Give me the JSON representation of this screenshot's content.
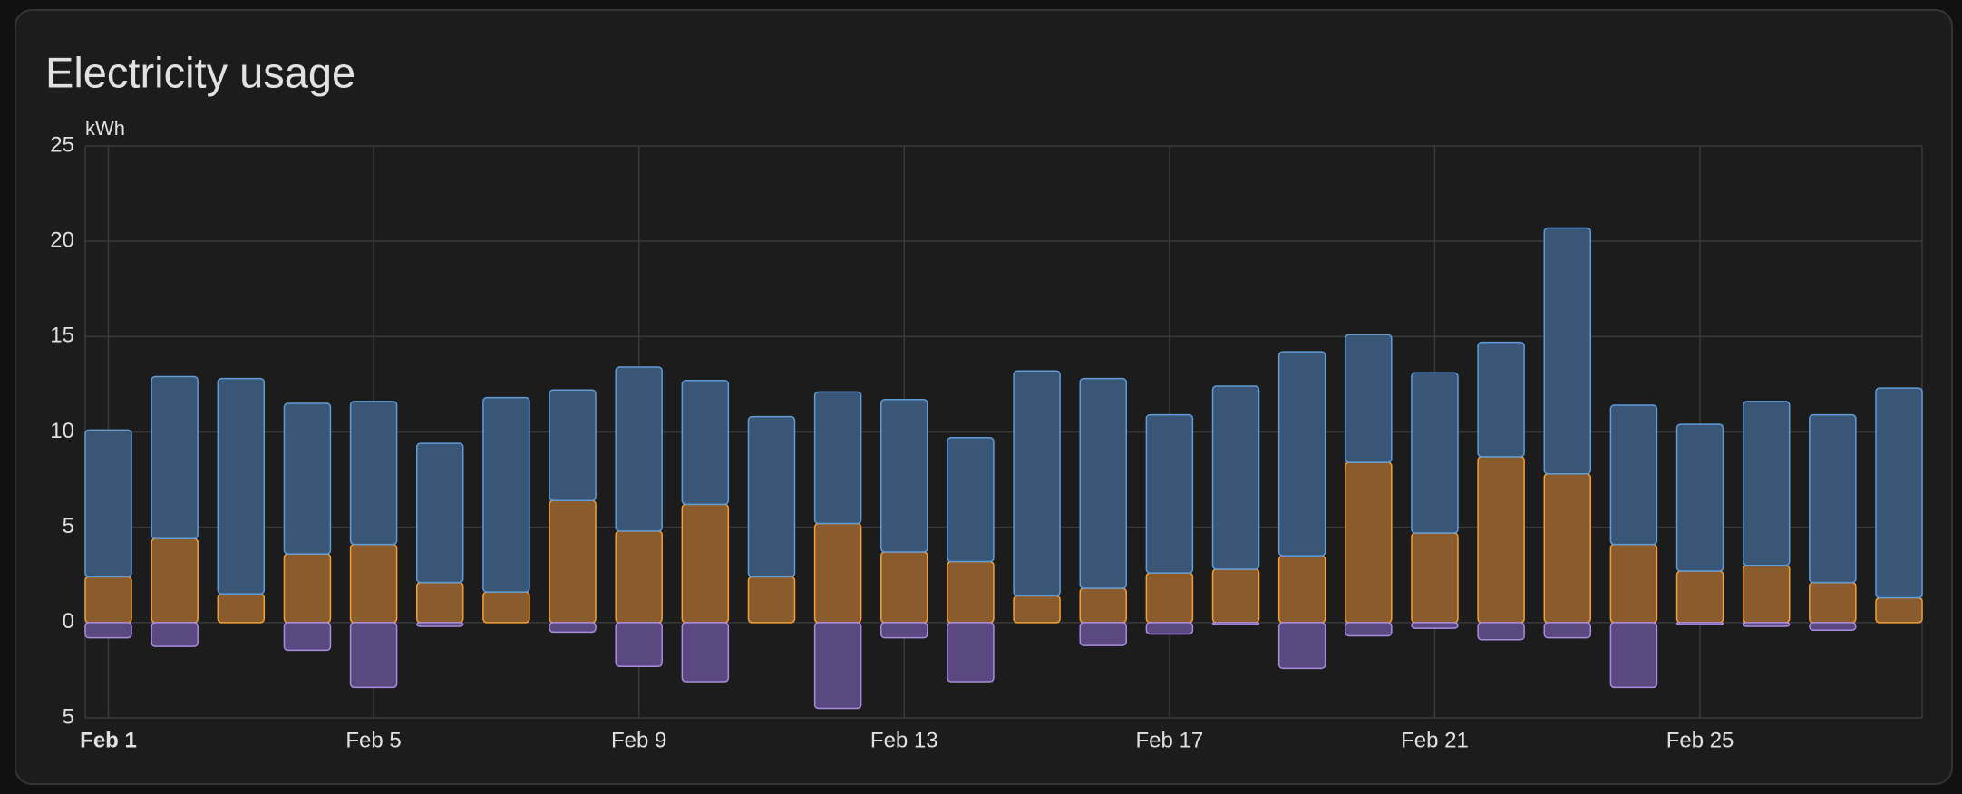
{
  "chart_data": {
    "type": "stacked-bar",
    "title": "Electricity usage",
    "y_label": "kWh",
    "categories": [
      "Feb 1",
      null,
      null,
      null,
      "Feb 5",
      null,
      null,
      null,
      "Feb 9",
      null,
      null,
      null,
      "Feb 13",
      null,
      null,
      null,
      "Feb 17",
      null,
      null,
      null,
      "Feb 21",
      null,
      null,
      null,
      "Feb 25",
      null,
      null,
      null
    ],
    "series": [
      {
        "color": "#f2a03a",
        "fill": "#8a5b2c",
        "values": [
          2.4,
          4.4,
          1.5,
          3.6,
          4.1,
          2.1,
          1.6,
          6.4,
          4.8,
          6.2,
          2.4,
          5.2,
          3.7,
          3.2,
          1.4,
          1.8,
          2.6,
          2.8,
          3.5,
          8.4,
          4.7,
          8.7,
          7.8,
          4.1,
          2.7,
          3.0,
          2.1,
          1.3
        ]
      },
      {
        "color": "#5f9cd8",
        "fill": "#3a5676",
        "values": [
          7.7,
          8.5,
          11.3,
          7.9,
          7.5,
          7.3,
          10.2,
          5.8,
          8.6,
          6.5,
          8.4,
          6.9,
          8.0,
          6.5,
          11.8,
          11.0,
          8.3,
          9.6,
          10.7,
          6.7,
          8.4,
          6.0,
          12.9,
          7.3,
          7.7,
          8.6,
          8.8,
          11.0
        ]
      },
      {
        "color": "#a98be0",
        "fill": "#5a4980",
        "values": [
          -0.8,
          -1.25,
          0,
          -1.45,
          -3.4,
          -0.2,
          0,
          -0.5,
          -2.3,
          -3.1,
          0,
          -4.5,
          -0.8,
          -3.1,
          0,
          -1.2,
          -0.6,
          -0.1,
          -2.4,
          -0.7,
          -0.3,
          -0.9,
          -0.8,
          -3.4,
          -0.1,
          -0.2,
          -0.4,
          0
        ]
      }
    ],
    "ylim": [
      -5,
      25
    ],
    "yticks": [
      {
        "value": -5,
        "label": "5"
      },
      0,
      5,
      10,
      15,
      20,
      25
    ],
    "grid": true
  }
}
